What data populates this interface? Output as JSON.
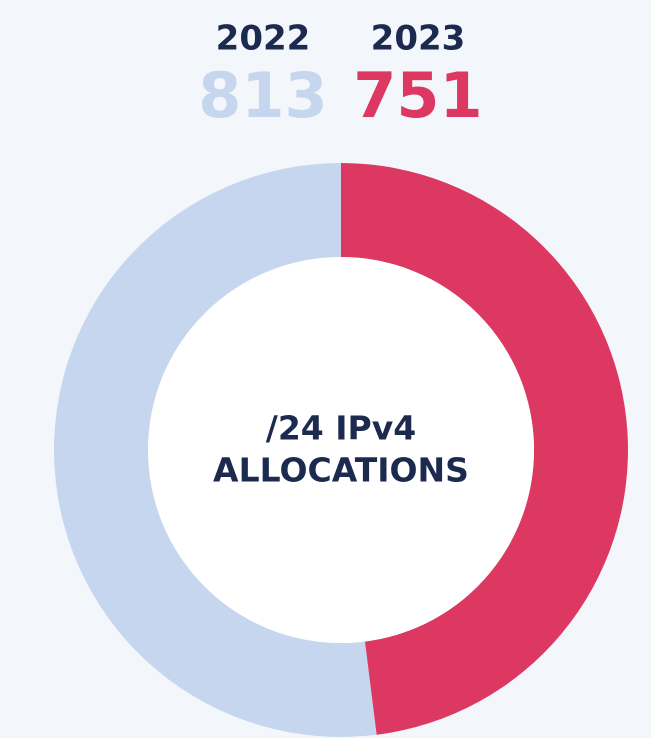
{
  "chart_data": {
    "type": "donut",
    "categories": [
      "2022",
      "2023"
    ],
    "values": [
      813,
      751
    ],
    "colors": [
      "#c5d6ee",
      "#dc3862"
    ],
    "center_label": [
      "/24 IPv4",
      "ALLOCATIONS"
    ]
  }
}
